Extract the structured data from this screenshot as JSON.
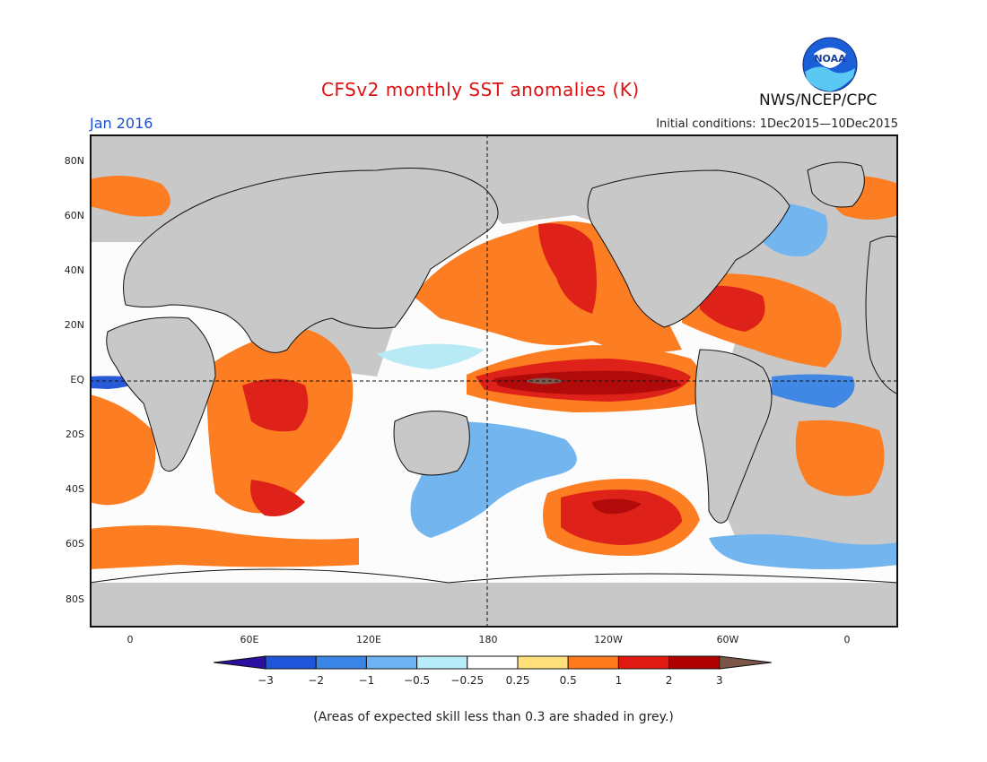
{
  "header": {
    "title": "CFSv2 monthly SST anomalies (K)",
    "month": "Jan 2016",
    "initial_conditions": "Initial conditions: 1Dec2015—10Dec2015",
    "org": "NWS/NCEP/CPC",
    "logo_text": "NOAA"
  },
  "axes": {
    "y_labels": [
      "80N",
      "60N",
      "40N",
      "20N",
      "EQ",
      "20S",
      "40S",
      "60S",
      "80S"
    ],
    "x_labels": [
      "0",
      "60E",
      "120E",
      "180",
      "120W",
      "60W",
      "0"
    ]
  },
  "colorbar": {
    "labels": [
      "−3",
      "−2",
      "−1",
      "−0.5",
      "−0.25",
      "0.25",
      "0.5",
      "1",
      "2",
      "3"
    ],
    "colors": [
      "#2a0fa0",
      "#1f55d8",
      "#3a85e6",
      "#6eb4f2",
      "#b7ecf8",
      "#ffffff",
      "#ffe07a",
      "#ff7a1a",
      "#e01a10",
      "#b00000",
      "#7a5548"
    ]
  },
  "note": "(Areas of expected skill less than 0.3 are shaded in grey.)"
}
